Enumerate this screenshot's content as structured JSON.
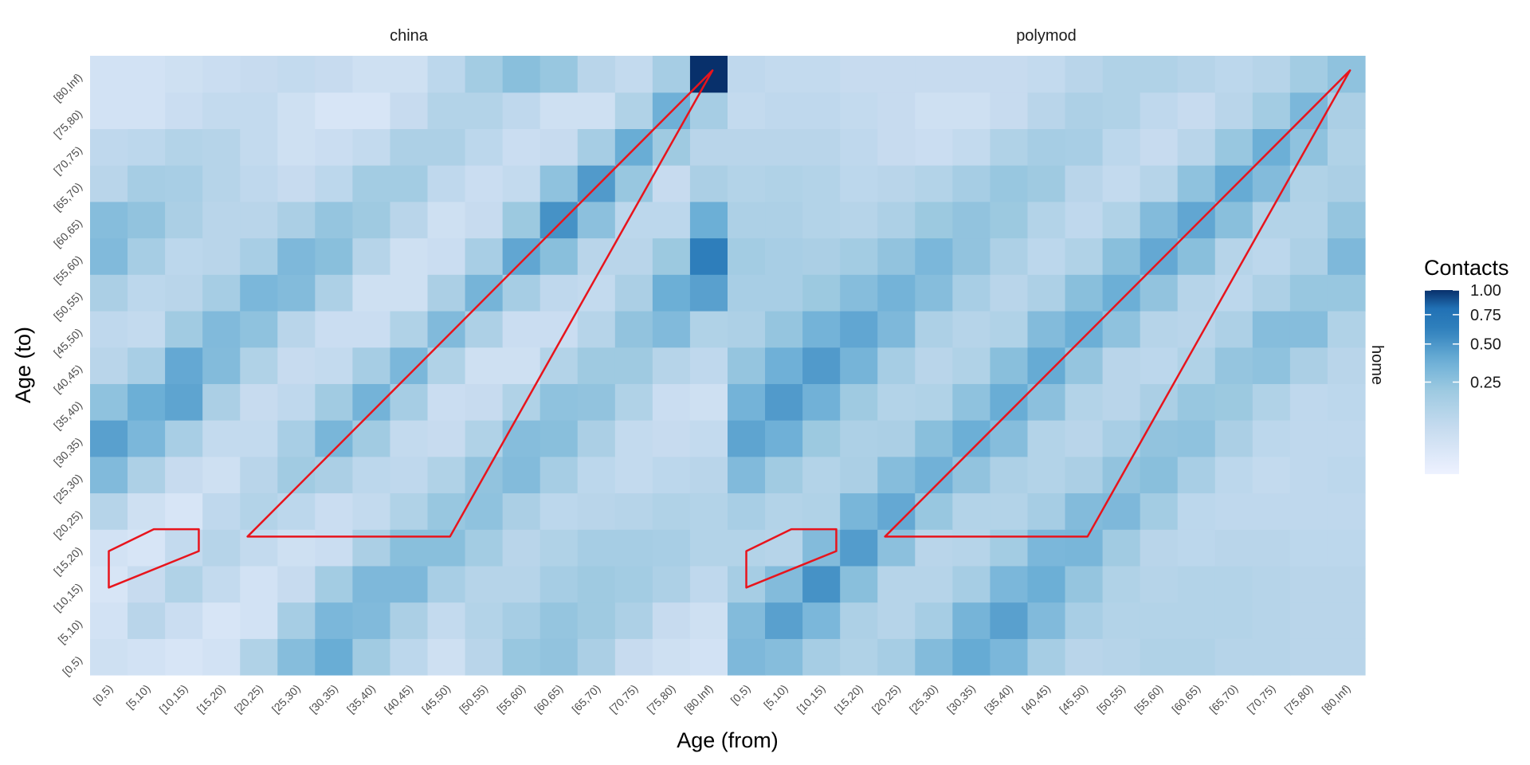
{
  "chart_data": {
    "type": "heatmap",
    "facets": [
      "china",
      "polymod"
    ],
    "row_strip": "home",
    "xlabel": "Age (from)",
    "ylabel": "Age (to)",
    "x_categories": [
      "[0,5)",
      "[5,10)",
      "[10,15)",
      "[15,20)",
      "[20,25)",
      "[25,30)",
      "[30,35)",
      "[35,40)",
      "[40,45)",
      "[45,50)",
      "[50,55)",
      "[55,60)",
      "[60,65)",
      "[65,70)",
      "[70,75)",
      "[75,80)",
      "[80,Inf)"
    ],
    "y_categories": [
      "[0,5)",
      "[5,10)",
      "[10,15)",
      "[15,20)",
      "[20,25)",
      "[25,30)",
      "[30,35)",
      "[35,40)",
      "[40,45)",
      "[45,50)",
      "[50,55)",
      "[55,60)",
      "[60,65)",
      "[65,70)",
      "[70,75)",
      "[75,80)",
      "[80,Inf)"
    ],
    "legend": {
      "title": "Contacts",
      "breaks": [
        1.0,
        0.75,
        0.5,
        0.25
      ],
      "labels": [
        "1.00",
        "0.75",
        "0.50",
        "0.25"
      ],
      "scale": "sqrt",
      "low_color": "#eef2ff",
      "high_color": "#08306b"
    },
    "overlay_color": "#e8141c",
    "overlays": [
      {
        "shape": "upper-left-region",
        "points": [
          [
            0,
            9.5
          ],
          [
            0,
            14.5
          ],
          [
            6,
            17.5
          ],
          [
            12,
            17.5
          ],
          [
            12,
            14.5
          ]
        ]
      },
      {
        "shape": "lower-right-triangle",
        "points": [
          [
            18.5,
            16.5
          ],
          [
            45.5,
            16.5
          ],
          [
            80.5,
            80.5
          ]
        ]
      }
    ],
    "values": {
      "china": [
        [
          0.04,
          0.03,
          0.02,
          0.03,
          0.13,
          0.28,
          0.39,
          0.19,
          0.09,
          0.04,
          0.1,
          0.22,
          0.24,
          0.15,
          0.06,
          0.04,
          0.03
        ],
        [
          0.03,
          0.1,
          0.05,
          0.02,
          0.03,
          0.17,
          0.32,
          0.3,
          0.15,
          0.07,
          0.12,
          0.17,
          0.23,
          0.2,
          0.14,
          0.06,
          0.04
        ],
        [
          0.02,
          0.06,
          0.13,
          0.07,
          0.03,
          0.06,
          0.18,
          0.31,
          0.31,
          0.16,
          0.11,
          0.11,
          0.17,
          0.2,
          0.18,
          0.14,
          0.08
        ],
        [
          0.03,
          0.02,
          0.07,
          0.11,
          0.07,
          0.04,
          0.05,
          0.15,
          0.27,
          0.27,
          0.18,
          0.1,
          0.13,
          0.17,
          0.17,
          0.16,
          0.12
        ],
        [
          0.11,
          0.04,
          0.02,
          0.08,
          0.12,
          0.09,
          0.05,
          0.07,
          0.13,
          0.22,
          0.25,
          0.15,
          0.09,
          0.1,
          0.11,
          0.13,
          0.12
        ],
        [
          0.3,
          0.14,
          0.06,
          0.04,
          0.1,
          0.19,
          0.15,
          0.09,
          0.08,
          0.13,
          0.24,
          0.29,
          0.17,
          0.09,
          0.07,
          0.09,
          0.1
        ],
        [
          0.45,
          0.32,
          0.16,
          0.07,
          0.07,
          0.16,
          0.33,
          0.19,
          0.07,
          0.06,
          0.13,
          0.28,
          0.27,
          0.15,
          0.07,
          0.06,
          0.07
        ],
        [
          0.25,
          0.38,
          0.43,
          0.15,
          0.06,
          0.08,
          0.19,
          0.35,
          0.17,
          0.05,
          0.06,
          0.13,
          0.25,
          0.24,
          0.13,
          0.05,
          0.04
        ],
        [
          0.1,
          0.16,
          0.41,
          0.29,
          0.13,
          0.06,
          0.07,
          0.17,
          0.32,
          0.13,
          0.04,
          0.04,
          0.12,
          0.2,
          0.2,
          0.11,
          0.08
        ],
        [
          0.08,
          0.07,
          0.19,
          0.3,
          0.25,
          0.1,
          0.05,
          0.05,
          0.13,
          0.3,
          0.14,
          0.05,
          0.05,
          0.11,
          0.24,
          0.3,
          0.13
        ],
        [
          0.15,
          0.09,
          0.1,
          0.17,
          0.32,
          0.29,
          0.14,
          0.04,
          0.04,
          0.15,
          0.34,
          0.17,
          0.08,
          0.07,
          0.15,
          0.38,
          0.45
        ],
        [
          0.3,
          0.17,
          0.09,
          0.1,
          0.16,
          0.31,
          0.27,
          0.11,
          0.04,
          0.05,
          0.16,
          0.42,
          0.27,
          0.1,
          0.1,
          0.21,
          0.65
        ],
        [
          0.28,
          0.24,
          0.15,
          0.1,
          0.1,
          0.15,
          0.23,
          0.2,
          0.1,
          0.04,
          0.06,
          0.21,
          0.52,
          0.26,
          0.09,
          0.09,
          0.38
        ],
        [
          0.1,
          0.17,
          0.16,
          0.11,
          0.08,
          0.06,
          0.09,
          0.18,
          0.18,
          0.08,
          0.05,
          0.07,
          0.25,
          0.48,
          0.22,
          0.06,
          0.15
        ],
        [
          0.08,
          0.09,
          0.12,
          0.11,
          0.07,
          0.04,
          0.05,
          0.07,
          0.14,
          0.14,
          0.09,
          0.05,
          0.06,
          0.17,
          0.39,
          0.2,
          0.1
        ],
        [
          0.03,
          0.03,
          0.05,
          0.07,
          0.07,
          0.04,
          0.02,
          0.02,
          0.06,
          0.12,
          0.12,
          0.08,
          0.04,
          0.04,
          0.13,
          0.37,
          0.17
        ],
        [
          0.03,
          0.03,
          0.04,
          0.05,
          0.06,
          0.07,
          0.06,
          0.04,
          0.04,
          0.09,
          0.18,
          0.27,
          0.22,
          0.1,
          0.07,
          0.17,
          1.0
        ]
      ],
      "polymod": [
        [
          0.31,
          0.28,
          0.17,
          0.13,
          0.17,
          0.29,
          0.4,
          0.32,
          0.17,
          0.1,
          0.11,
          0.13,
          0.13,
          0.11,
          0.11,
          0.1,
          0.1
        ],
        [
          0.29,
          0.45,
          0.32,
          0.14,
          0.11,
          0.17,
          0.34,
          0.45,
          0.3,
          0.16,
          0.12,
          0.12,
          0.12,
          0.12,
          0.11,
          0.1,
          0.1
        ],
        [
          0.17,
          0.29,
          0.52,
          0.27,
          0.11,
          0.11,
          0.17,
          0.32,
          0.38,
          0.23,
          0.13,
          0.11,
          0.12,
          0.12,
          0.11,
          0.1,
          0.1
        ],
        [
          0.12,
          0.11,
          0.29,
          0.47,
          0.26,
          0.1,
          0.11,
          0.18,
          0.32,
          0.33,
          0.19,
          0.1,
          0.09,
          0.1,
          0.1,
          0.09,
          0.09
        ],
        [
          0.16,
          0.12,
          0.13,
          0.33,
          0.41,
          0.22,
          0.12,
          0.12,
          0.17,
          0.29,
          0.31,
          0.18,
          0.09,
          0.08,
          0.08,
          0.08,
          0.08
        ],
        [
          0.3,
          0.19,
          0.12,
          0.15,
          0.28,
          0.36,
          0.24,
          0.14,
          0.12,
          0.15,
          0.24,
          0.27,
          0.16,
          0.09,
          0.07,
          0.08,
          0.09
        ],
        [
          0.43,
          0.37,
          0.21,
          0.14,
          0.15,
          0.27,
          0.38,
          0.28,
          0.12,
          0.1,
          0.16,
          0.24,
          0.25,
          0.15,
          0.09,
          0.08,
          0.08
        ],
        [
          0.35,
          0.48,
          0.36,
          0.2,
          0.12,
          0.13,
          0.25,
          0.39,
          0.26,
          0.12,
          0.1,
          0.15,
          0.22,
          0.21,
          0.13,
          0.08,
          0.09
        ],
        [
          0.23,
          0.37,
          0.48,
          0.34,
          0.17,
          0.1,
          0.13,
          0.27,
          0.4,
          0.23,
          0.1,
          0.09,
          0.13,
          0.23,
          0.25,
          0.15,
          0.1
        ],
        [
          0.14,
          0.23,
          0.35,
          0.42,
          0.31,
          0.14,
          0.11,
          0.13,
          0.29,
          0.38,
          0.25,
          0.11,
          0.1,
          0.14,
          0.28,
          0.28,
          0.13
        ],
        [
          0.16,
          0.16,
          0.21,
          0.28,
          0.35,
          0.28,
          0.16,
          0.1,
          0.14,
          0.27,
          0.38,
          0.24,
          0.11,
          0.09,
          0.14,
          0.22,
          0.22
        ],
        [
          0.18,
          0.16,
          0.15,
          0.18,
          0.24,
          0.32,
          0.24,
          0.14,
          0.09,
          0.13,
          0.27,
          0.41,
          0.27,
          0.11,
          0.09,
          0.14,
          0.31
        ],
        [
          0.14,
          0.14,
          0.12,
          0.11,
          0.14,
          0.21,
          0.24,
          0.21,
          0.12,
          0.08,
          0.13,
          0.29,
          0.42,
          0.27,
          0.12,
          0.12,
          0.23
        ],
        [
          0.12,
          0.13,
          0.12,
          0.09,
          0.1,
          0.12,
          0.17,
          0.22,
          0.2,
          0.1,
          0.07,
          0.11,
          0.25,
          0.4,
          0.29,
          0.13,
          0.15
        ],
        [
          0.1,
          0.1,
          0.1,
          0.08,
          0.06,
          0.05,
          0.07,
          0.13,
          0.17,
          0.16,
          0.09,
          0.06,
          0.1,
          0.22,
          0.38,
          0.25,
          0.13
        ],
        [
          0.07,
          0.08,
          0.08,
          0.07,
          0.06,
          0.04,
          0.04,
          0.06,
          0.1,
          0.14,
          0.13,
          0.08,
          0.06,
          0.1,
          0.18,
          0.32,
          0.15
        ],
        [
          0.08,
          0.07,
          0.07,
          0.06,
          0.06,
          0.06,
          0.06,
          0.06,
          0.07,
          0.1,
          0.13,
          0.13,
          0.11,
          0.09,
          0.11,
          0.18,
          0.25
        ]
      ]
    }
  }
}
